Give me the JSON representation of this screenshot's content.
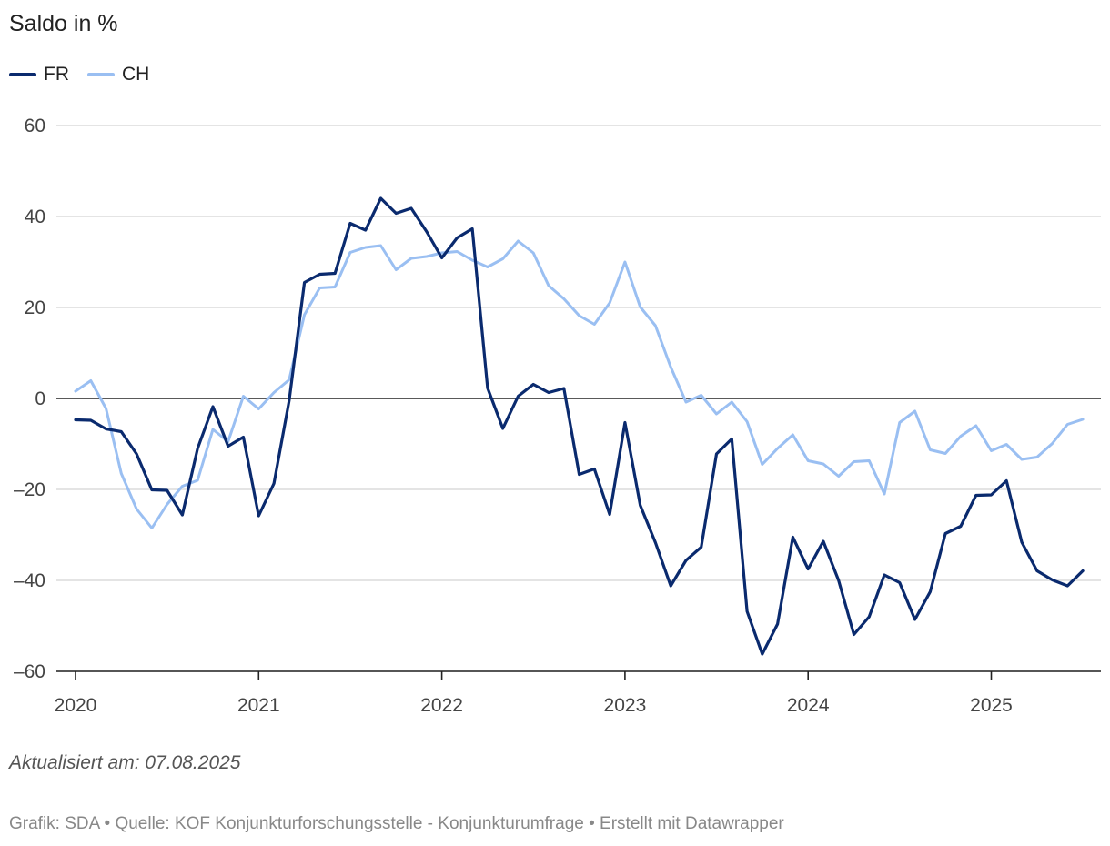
{
  "chart_data": {
    "type": "line",
    "title": "Saldo in %",
    "ylim": [
      -60,
      60
    ],
    "y_ticks": [
      60,
      40,
      20,
      0,
      -20,
      -40,
      -60
    ],
    "y_tick_labels": [
      "60",
      "40",
      "20",
      "0",
      "–20",
      "–40",
      "–60"
    ],
    "x_ticks": [
      2020,
      2021,
      2022,
      2023,
      2024,
      2025
    ],
    "x_tick_labels": [
      "2020",
      "2021",
      "2022",
      "2023",
      "2024",
      "2025"
    ],
    "x_start": 2020.0,
    "x_step": 0.08333,
    "series": [
      {
        "name": "FR",
        "color": "#0a2a6e",
        "values": [
          -4.7,
          -4.8,
          -6.7,
          -7.3,
          -12.2,
          -20.1,
          -20.2,
          -25.6,
          -11.0,
          -1.8,
          -10.5,
          -8.5,
          -25.8,
          -18.7,
          -0.5,
          25.5,
          27.3,
          27.5,
          38.5,
          37.0,
          44.0,
          40.7,
          41.8,
          36.7,
          30.9,
          35.3,
          37.3,
          2.3,
          -6.6,
          0.5,
          3.1,
          1.3,
          2.2,
          -16.7,
          -15.5,
          -25.5,
          -5.3,
          -23.5,
          -31.7,
          -41.2,
          -35.6,
          -32.7,
          -12.2,
          -8.9,
          -46.8,
          -56.2,
          -49.6,
          -30.5,
          -37.5,
          -31.4,
          -40.0,
          -51.9,
          -48.0,
          -38.8,
          -40.5,
          -48.6,
          -42.5,
          -29.7,
          -28.1,
          -21.3,
          -21.2,
          -18.1,
          -31.6,
          -37.9,
          -39.9,
          -41.2,
          -37.9
        ]
      },
      {
        "name": "CH",
        "color": "#9abff2",
        "values": [
          1.6,
          3.9,
          -2.2,
          -16.5,
          -24.3,
          -28.5,
          -23.3,
          -19.3,
          -18.0,
          -6.8,
          -9.5,
          0.5,
          -2.3,
          1.3,
          4.1,
          18.4,
          24.3,
          24.5,
          32.1,
          33.2,
          33.6,
          28.3,
          30.8,
          31.2,
          32.0,
          32.3,
          30.4,
          28.9,
          30.7,
          34.6,
          32.0,
          24.8,
          21.9,
          18.2,
          16.3,
          21.0,
          30.0,
          20.1,
          16.0,
          6.9,
          -0.8,
          0.7,
          -3.4,
          -0.8,
          -5.1,
          -14.5,
          -11.0,
          -8.0,
          -13.7,
          -14.4,
          -17.1,
          -13.9,
          -13.7,
          -21.0,
          -5.3,
          -2.8,
          -11.3,
          -12.1,
          -8.3,
          -6.0,
          -11.5,
          -10.1,
          -13.4,
          -12.9,
          -9.9,
          -5.7,
          -4.6
        ]
      }
    ],
    "notes": "Aktualisiert am: 07.08.2025",
    "footer": "Grafik: SDA • Quelle: KOF Konjunkturforschungsstelle - Konjunkturumfrage • Erstellt mit Datawrapper"
  }
}
